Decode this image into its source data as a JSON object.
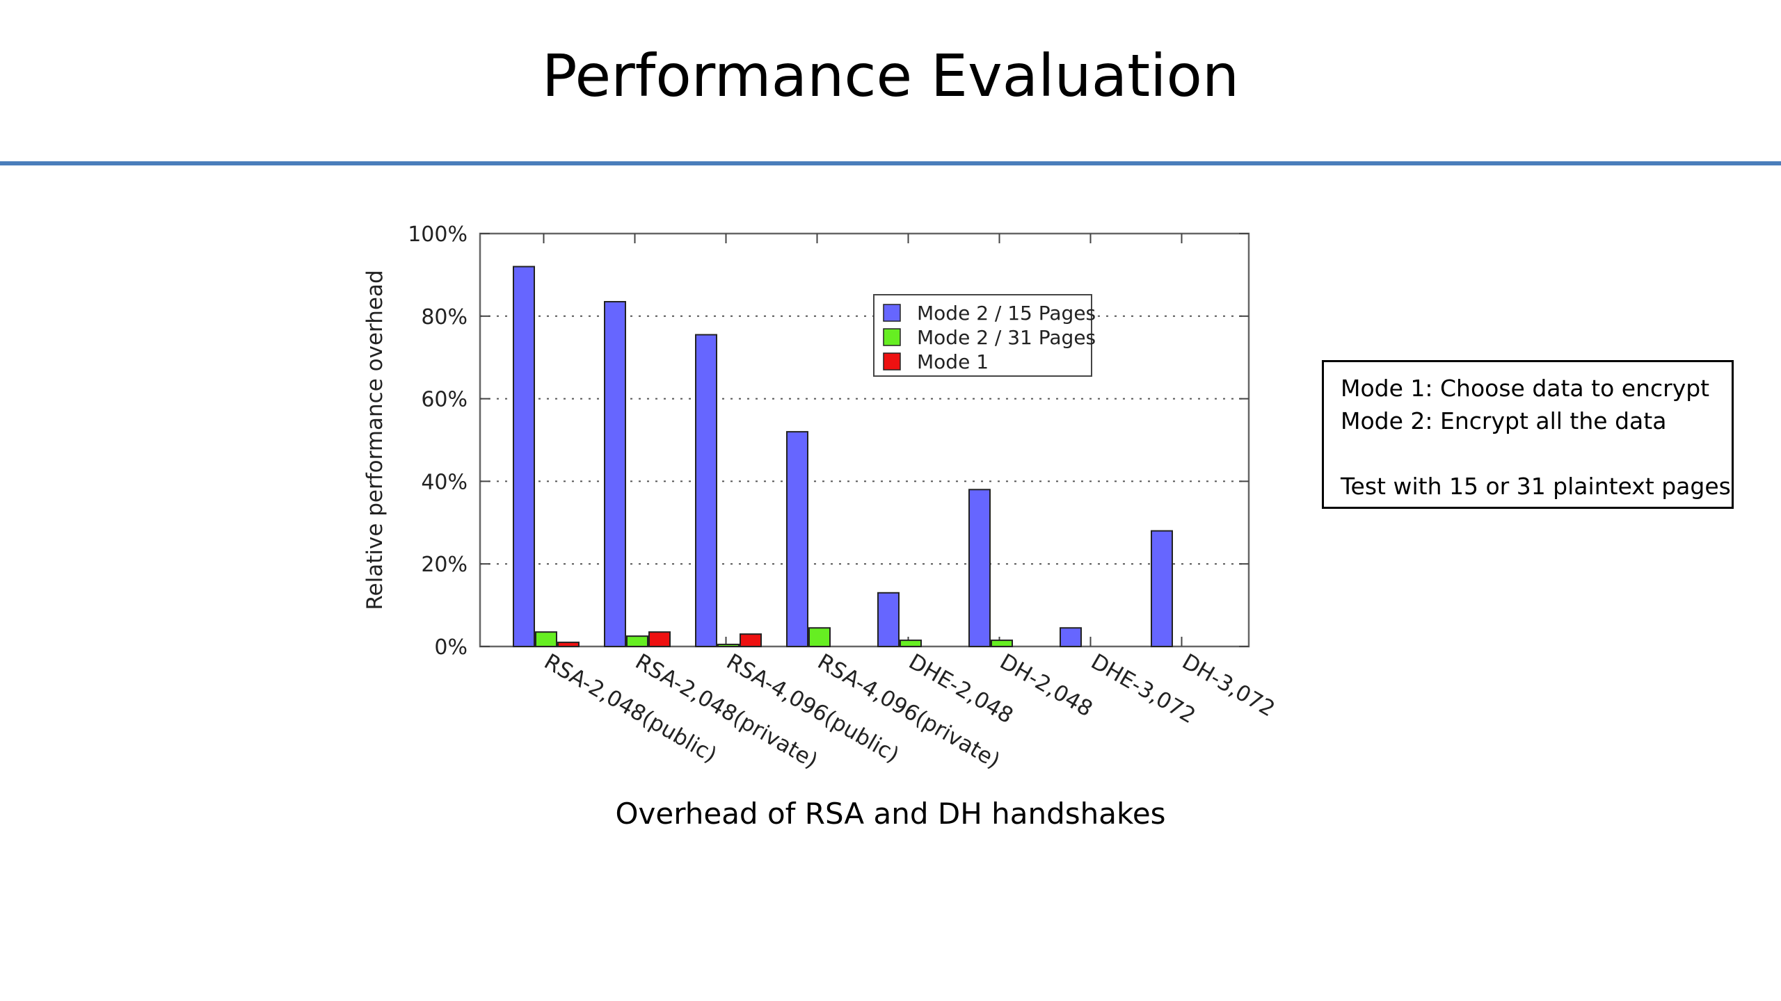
{
  "slide": {
    "title": "Performance Evaluation",
    "caption": "Overhead of RSA and DH handshakes",
    "accent_color": "#4a7ebb"
  },
  "notes": {
    "lines": [
      "Mode 1: Choose data to encrypt",
      "Mode 2: Encrypt all the data",
      "Test with 15 or 31 plaintext pages"
    ]
  },
  "chart_data": {
    "type": "bar",
    "title": "",
    "xlabel": "",
    "ylabel": "Relative performance overhead",
    "ylim": [
      0,
      100
    ],
    "yticks": [
      "0%",
      "20%",
      "40%",
      "60%",
      "80%",
      "100%"
    ],
    "grid": true,
    "legend_position": "top-right",
    "categories": [
      "RSA-2,048(public)",
      "RSA-2,048(private)",
      "RSA-4,096(public)",
      "RSA-4,096(private)",
      "DHE-2,048",
      "DH-2,048",
      "DHE-3,072",
      "DH-3,072"
    ],
    "series": [
      {
        "name": "Mode 2 / 15 Pages",
        "color": "#6666ff",
        "values": [
          92,
          83.5,
          75.5,
          52,
          13,
          38,
          4.5,
          28
        ]
      },
      {
        "name": "Mode 2 / 31 Pages",
        "color": "#66ee22",
        "values": [
          3.5,
          2.5,
          0.5,
          4.5,
          1.5,
          1.5,
          0,
          0
        ]
      },
      {
        "name": "Mode 1",
        "color": "#ee1111",
        "values": [
          1,
          3.5,
          3,
          0,
          0,
          0,
          0,
          0
        ]
      }
    ]
  }
}
